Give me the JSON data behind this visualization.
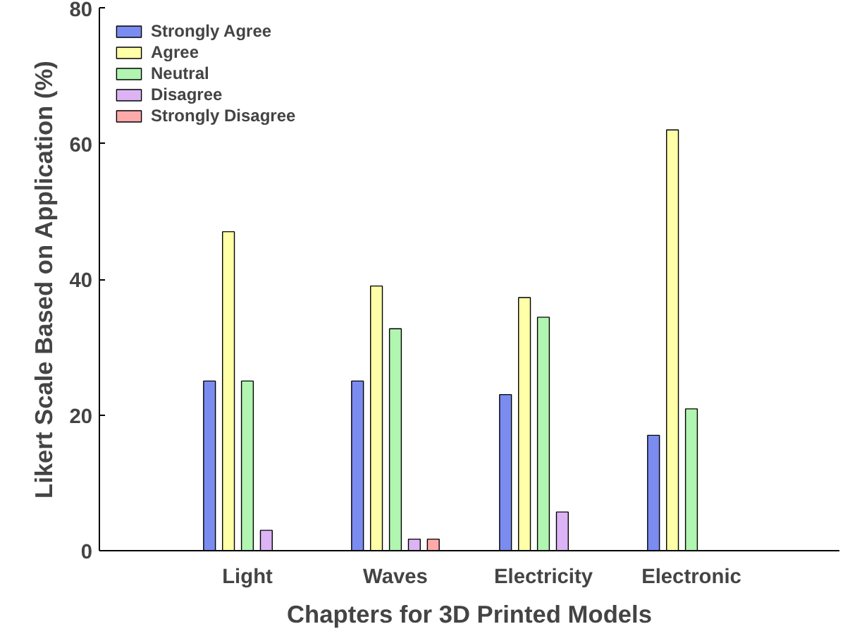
{
  "chart_data": {
    "type": "bar",
    "xlabel": "Chapters for 3D Printed Models",
    "ylabel": "Likert Scale Based on Application (%)",
    "categories": [
      "Light",
      "Waves",
      "Electricity",
      "Electronic"
    ],
    "series": [
      {
        "name": "Strongly Agree",
        "color": "#7b8cf0",
        "values": [
          25,
          25,
          23,
          17
        ]
      },
      {
        "name": "Agree",
        "color": "#ffffa8",
        "values": [
          47,
          39,
          37.3,
          62
        ]
      },
      {
        "name": "Neutral",
        "color": "#b0f5b0",
        "values": [
          25,
          32.7,
          34.4,
          20.9
        ]
      },
      {
        "name": "Disagree",
        "color": "#dcb4f5",
        "values": [
          3,
          1.7,
          5.7,
          null
        ]
      },
      {
        "name": "Strongly Disagree",
        "color": "#ffaaaa",
        "values": [
          null,
          1.7,
          null,
          null
        ]
      }
    ],
    "ylim": [
      0,
      80
    ],
    "yticks": [
      0,
      20,
      40,
      60,
      80
    ],
    "grid": false,
    "legend": "top left"
  }
}
